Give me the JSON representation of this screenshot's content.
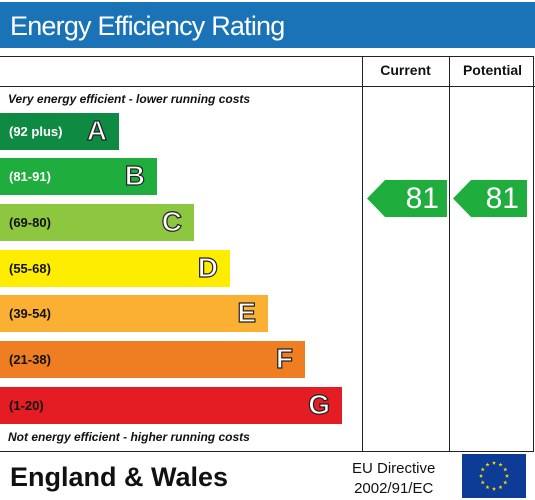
{
  "title": "Energy Efficiency Rating",
  "columns": {
    "current": "Current",
    "potential": "Potential"
  },
  "captions": {
    "top": "Very energy efficient - lower running costs",
    "bottom": "Not energy efficient - higher running costs"
  },
  "bands": [
    {
      "range": "(92 plus)",
      "letter": "A",
      "color": "#0f8a43",
      "range_color": "#ffffff"
    },
    {
      "range": "(81-91)",
      "letter": "B",
      "color": "#1fad3e",
      "range_color": "#ffffff"
    },
    {
      "range": "(69-80)",
      "letter": "C",
      "color": "#8dc63f",
      "range_color": "#111111"
    },
    {
      "range": "(55-68)",
      "letter": "D",
      "color": "#ffed00",
      "range_color": "#111111"
    },
    {
      "range": "(39-54)",
      "letter": "E",
      "color": "#fbb034",
      "range_color": "#111111"
    },
    {
      "range": "(21-38)",
      "letter": "F",
      "color": "#ef7d22",
      "range_color": "#111111"
    },
    {
      "range": "(1-20)",
      "letter": "G",
      "color": "#e31d23",
      "range_color": "#111111"
    }
  ],
  "ratings": {
    "current": "81",
    "potential": "81",
    "color": "#1fad3e"
  },
  "footer": {
    "region": "England & Wales",
    "directive_line1": "EU Directive",
    "directive_line2": "2002/91/EC"
  }
}
